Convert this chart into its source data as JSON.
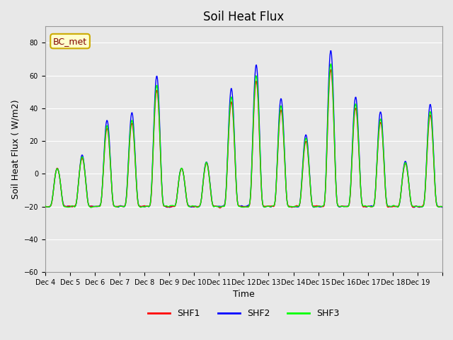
{
  "title": "Soil Heat Flux",
  "ylabel": "Soil Heat Flux ( W/m2)",
  "xlabel": "Time",
  "ylim": [
    -60,
    90
  ],
  "yticks": [
    -60,
    -40,
    -20,
    0,
    20,
    40,
    60,
    80
  ],
  "x_tick_labels": [
    "Dec 4",
    "Dec 5",
    "Dec 6",
    "Dec 7",
    "Dec 8",
    "Dec 9",
    "Dec 10",
    "Dec 11",
    "Dec 12",
    "Dec 13",
    "Dec 14",
    "Dec 15",
    "Dec 16",
    "Dec 17",
    "Dec 18",
    "Dec 19"
  ],
  "legend_label": "BC_met",
  "series_labels": [
    "SHF1",
    "SHF2",
    "SHF3"
  ],
  "colors": [
    "red",
    "blue",
    "lime"
  ],
  "background_color": "#e8e8e8",
  "plot_bg_color": "#e8e8e8",
  "grid_color": "white",
  "annotation_box_color": "#ffffcc",
  "annotation_text_color": "#800000"
}
